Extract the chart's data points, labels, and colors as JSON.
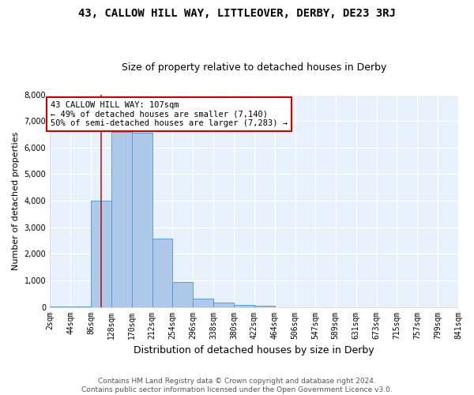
{
  "title": "43, CALLOW HILL WAY, LITTLEOVER, DERBY, DE23 3RJ",
  "subtitle": "Size of property relative to detached houses in Derby",
  "xlabel": "Distribution of detached houses by size in Derby",
  "ylabel": "Number of detached properties",
  "bin_edges": [
    2,
    44,
    86,
    128,
    170,
    212,
    254,
    296,
    338,
    380,
    422,
    464,
    506,
    547,
    589,
    631,
    673,
    715,
    757,
    799,
    841
  ],
  "bar_heights": [
    5,
    5,
    4000,
    6600,
    6550,
    2580,
    950,
    300,
    155,
    75,
    60,
    0,
    0,
    0,
    0,
    0,
    0,
    0,
    0,
    0
  ],
  "bar_color": "#adc8e8",
  "bar_edge_color": "#5b9bd5",
  "property_size": 107,
  "vline_color": "#b22222",
  "annotation_text": "43 CALLOW HILL WAY: 107sqm\n← 49% of detached houses are smaller (7,140)\n50% of semi-detached houses are larger (7,283) →",
  "annotation_box_color": "#cc0000",
  "ylim": [
    0,
    8000
  ],
  "yticks": [
    0,
    1000,
    2000,
    3000,
    4000,
    5000,
    6000,
    7000,
    8000
  ],
  "tick_labels": [
    "2sqm",
    "44sqm",
    "86sqm",
    "128sqm",
    "170sqm",
    "212sqm",
    "254sqm",
    "296sqm",
    "338sqm",
    "380sqm",
    "422sqm",
    "464sqm",
    "506sqm",
    "547sqm",
    "589sqm",
    "631sqm",
    "673sqm",
    "715sqm",
    "757sqm",
    "799sqm",
    "841sqm"
  ],
  "footer_line1": "Contains HM Land Registry data © Crown copyright and database right 2024.",
  "footer_line2": "Contains public sector information licensed under the Open Government Licence v3.0.",
  "background_color": "#e8f0fb",
  "grid_color": "#ffffff",
  "title_fontsize": 10,
  "subtitle_fontsize": 9,
  "xlabel_fontsize": 9,
  "ylabel_fontsize": 8,
  "tick_fontsize": 7,
  "ann_fontsize": 7.5,
  "footer_fontsize": 6.5
}
